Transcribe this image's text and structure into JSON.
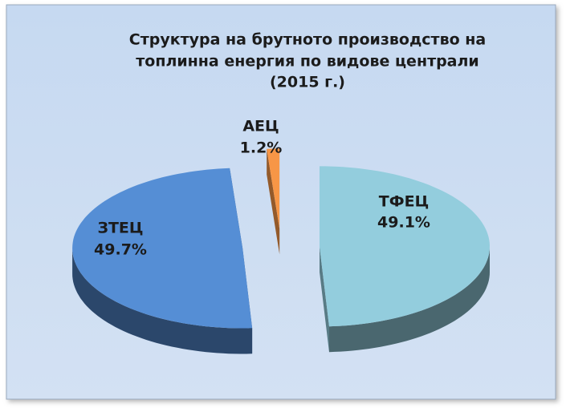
{
  "chart_data": {
    "type": "pie3d",
    "title": [
      "Структура на брутното производство на",
      "топлинна енергия по видове централи",
      "(2015 г.)"
    ],
    "categories": [
      "ТФЕЦ",
      "ЗТЕЦ",
      "АЕЦ"
    ],
    "values": [
      49.1,
      49.7,
      1.2
    ],
    "value_labels": [
      "49.1%",
      "49.7%",
      "1.2%"
    ],
    "colors": [
      "#93cddd",
      "#558ed5",
      "#f79646"
    ]
  }
}
